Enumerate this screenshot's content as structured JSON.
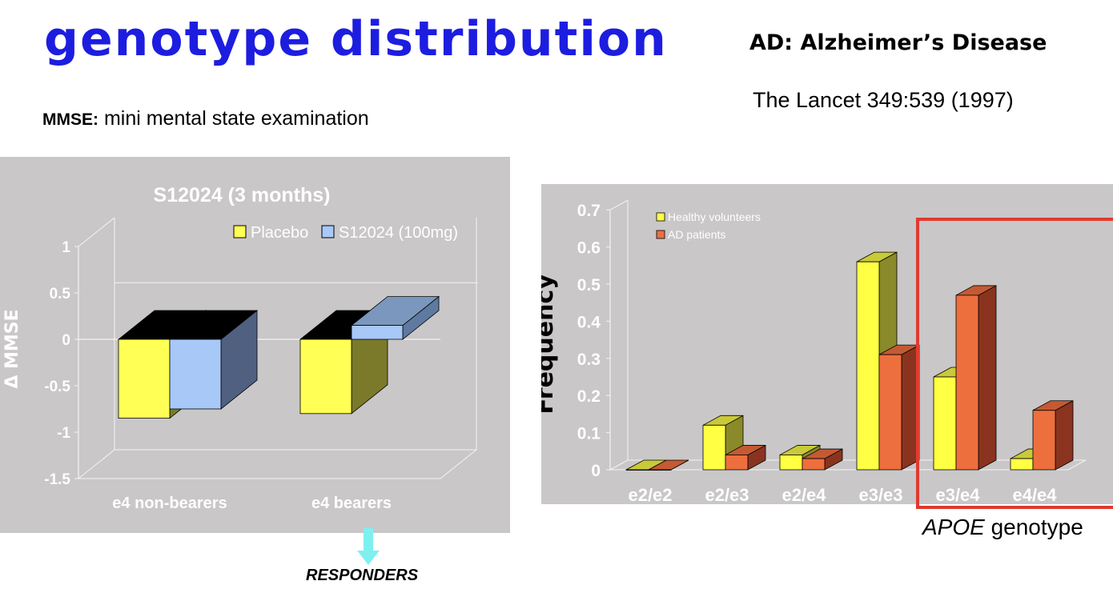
{
  "slide": {
    "title": "genotype distribution",
    "ad_definition": "AD: Alzheimer’s Disease",
    "citation": "The Lancet  349:539 (1997)",
    "mmse_abbrev": "MMSE:",
    "mmse_text": " mini mental state examination",
    "apoe_italic": "APOE",
    "apoe_rest": " genotype",
    "responders": "RESPONDERS",
    "colors": {
      "title": "#1d1de0",
      "highlight": "#e03a30",
      "arrow": "#7ff0f0"
    }
  },
  "chart_data": [
    {
      "type": "bar",
      "title": "S12024 (3 months)",
      "xlabel": "",
      "ylabel": "Δ MMSE",
      "categories": [
        "e4 non-bearers",
        "e4 bearers"
      ],
      "series": [
        {
          "name": "Placebo",
          "values": [
            -0.85,
            -0.8
          ],
          "color": "#ffff55"
        },
        {
          "name": "S12024 (100mg)",
          "values": [
            -0.75,
            0.15
          ],
          "color": "#a8c8f8"
        }
      ],
      "ylim": [
        -1.5,
        1
      ],
      "yticks": [
        "1",
        "0.5",
        "0",
        "-0.5",
        "-1",
        "-1.5"
      ],
      "legend": "top",
      "grid": false
    },
    {
      "type": "bar",
      "title": "",
      "xlabel": "",
      "ylabel": "Frequency",
      "categories": [
        "e2/e2",
        "e2/e3",
        "e2/e4",
        "e3/e3",
        "e3/e4",
        "e4/e4"
      ],
      "series": [
        {
          "name": "Healthy volunteers",
          "values": [
            0,
            0.12,
            0.04,
            0.56,
            0.25,
            0.03
          ],
          "color": "#ffff44"
        },
        {
          "name": "AD patients",
          "values": [
            0,
            0.04,
            0.03,
            0.31,
            0.47,
            0.16
          ],
          "color": "#ee6f3e"
        }
      ],
      "ylim": [
        0,
        0.7
      ],
      "yticks": [
        "0.7",
        "0.6",
        "0.5",
        "0.4",
        "0.3",
        "0.2",
        "0.1",
        "0"
      ],
      "legend": "top-left",
      "grid": false
    }
  ]
}
